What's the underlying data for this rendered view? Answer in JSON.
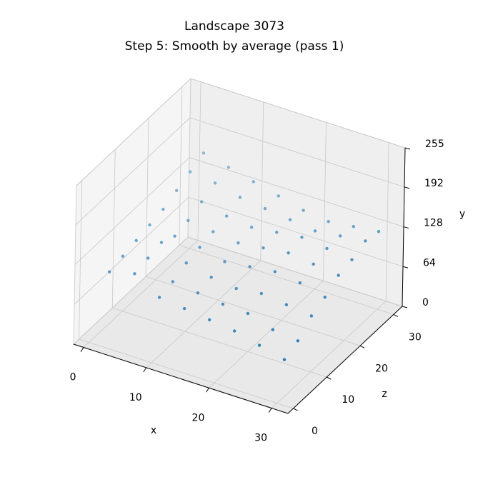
{
  "chart_data": {
    "type": "scatter3d",
    "title": "Landscape 3073",
    "subtitle": "Step 5: Smooth by average (pass 1)",
    "x_label": "x",
    "y_label": "y",
    "z_label": "z",
    "color": "#1f77b4",
    "xlim": [
      -1.6,
      32.6
    ],
    "zlim": [
      -1.6,
      32.6
    ],
    "ylim": [
      0,
      255
    ],
    "xticks": [
      0,
      10,
      20,
      30
    ],
    "zticks": [
      0,
      10,
      20,
      30
    ],
    "yticks": [
      0,
      64,
      128,
      192,
      255
    ],
    "grid": true,
    "x": [
      2,
      6,
      10,
      14,
      18,
      22,
      26,
      30,
      2,
      6,
      10,
      14,
      18,
      22,
      26,
      30,
      2,
      6,
      10,
      14,
      18,
      22,
      26,
      30,
      2,
      6,
      10,
      14,
      18,
      22,
      26,
      30,
      2,
      6,
      10,
      14,
      18,
      22,
      26,
      30,
      2,
      6,
      10,
      14,
      18,
      22,
      26,
      30,
      2,
      6,
      10,
      14,
      18,
      22,
      26,
      30,
      2,
      6,
      10,
      14,
      18,
      22,
      26,
      30
    ],
    "z": [
      2,
      2,
      2,
      2,
      2,
      2,
      2,
      2,
      6,
      6,
      6,
      6,
      6,
      6,
      6,
      6,
      10,
      10,
      10,
      10,
      10,
      10,
      10,
      10,
      14,
      14,
      14,
      14,
      14,
      14,
      14,
      14,
      18,
      18,
      18,
      18,
      18,
      18,
      18,
      18,
      22,
      22,
      22,
      22,
      22,
      22,
      22,
      22,
      26,
      26,
      26,
      26,
      26,
      26,
      26,
      26,
      30,
      30,
      30,
      30,
      30,
      30,
      30,
      30
    ],
    "y": [
      110,
      120,
      95,
      90,
      85,
      80,
      70,
      60,
      115,
      125,
      100,
      95,
      90,
      88,
      75,
      70,
      120,
      130,
      110,
      100,
      95,
      100,
      95,
      90,
      125,
      120,
      115,
      105,
      110,
      115,
      110,
      100,
      130,
      125,
      120,
      115,
      120,
      125,
      120,
      115,
      140,
      135,
      125,
      120,
      125,
      130,
      125,
      120,
      150,
      145,
      135,
      130,
      125,
      120,
      125,
      130,
      160,
      150,
      140,
      130,
      120,
      115,
      120,
      125
    ]
  }
}
